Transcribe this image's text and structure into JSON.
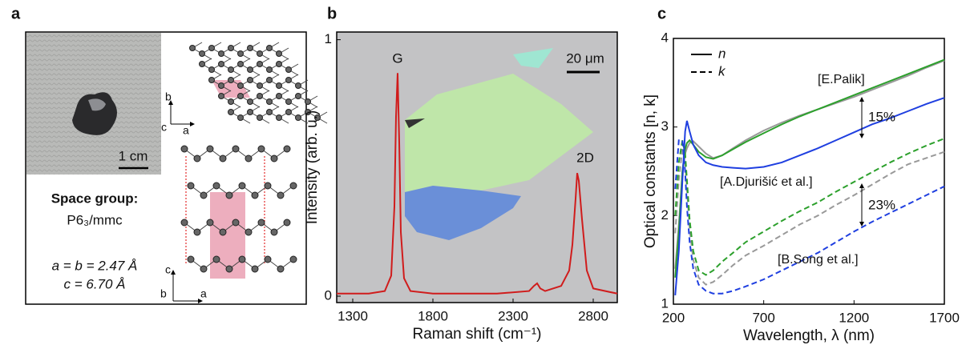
{
  "panel_labels": [
    "a",
    "b",
    "c"
  ],
  "panel_a": {
    "scale_bar": "1 cm",
    "space_group_title": "Space group:",
    "space_group": "P6₃/mmc",
    "lattice_a": "a = b = 2.47 Å",
    "lattice_c": "c = 6.70 Å",
    "top_axes": [
      "b",
      "c",
      "a"
    ],
    "side_axes": [
      "c",
      "b",
      "a"
    ]
  },
  "chart_data": [
    {
      "type": "line",
      "xlabel": "Raman shift (cm⁻¹)",
      "ylabel": "Intensity (arb. u.)",
      "x": [
        1200,
        1400,
        1500,
        1540,
        1560,
        1570,
        1580,
        1590,
        1600,
        1620,
        1660,
        1800,
        2000,
        2200,
        2400,
        2430,
        2450,
        2470,
        2500,
        2600,
        2650,
        2670,
        2690,
        2700,
        2710,
        2730,
        2760,
        2800,
        2950
      ],
      "series": [
        {
          "color": "#d01c1c",
          "values": [
            0.01,
            0.01,
            0.02,
            0.08,
            0.35,
            0.7,
            0.87,
            0.6,
            0.25,
            0.07,
            0.02,
            0.01,
            0.01,
            0.01,
            0.02,
            0.04,
            0.05,
            0.03,
            0.02,
            0.04,
            0.1,
            0.2,
            0.38,
            0.48,
            0.45,
            0.3,
            0.1,
            0.03,
            0.01
          ]
        }
      ],
      "xlim": [
        1200,
        2950
      ],
      "ylim": [
        -0.025,
        1.03
      ],
      "xticks": [
        1300,
        1800,
        2300,
        2800
      ],
      "yticks": [
        0,
        1
      ],
      "annotations": [
        "G",
        "2D",
        "20 μm"
      ]
    },
    {
      "type": "line",
      "xlabel": "Wavelength, λ (nm)",
      "ylabel": "Optical constants [n, k]",
      "x": [
        210,
        230,
        250,
        265,
        275,
        290,
        310,
        340,
        380,
        420,
        470,
        530,
        600,
        700,
        800,
        900,
        1000,
        1100,
        1200,
        1300,
        1400,
        1500,
        1600,
        1700
      ],
      "legend": [
        {
          "label": "n",
          "dash": "solid"
        },
        {
          "label": "k",
          "dash": "dashed"
        }
      ],
      "series_labels": [
        {
          "text": "[E.Palik]",
          "color": "#2ca02c"
        },
        {
          "text": "[A.Djurišić et al.]",
          "color": "#999999"
        },
        {
          "text": "[B.Song et al.]",
          "color": "#1f3fe0"
        }
      ],
      "series": [
        {
          "label": 1,
          "style": 0,
          "color": "#999999",
          "values": [
            1.4,
            1.9,
            2.5,
            2.7,
            2.76,
            2.82,
            2.84,
            2.78,
            2.7,
            2.65,
            2.68,
            2.76,
            2.85,
            2.96,
            3.05,
            3.13,
            3.2,
            3.27,
            3.34,
            3.42,
            3.5,
            3.58,
            3.67,
            3.75
          ]
        },
        {
          "label": 1,
          "style": 1,
          "color": "#999999",
          "values": [
            1.8,
            2.4,
            2.75,
            2.6,
            2.3,
            1.85,
            1.5,
            1.3,
            1.22,
            1.25,
            1.33,
            1.44,
            1.55,
            1.66,
            1.78,
            1.9,
            2.0,
            2.12,
            2.23,
            2.35,
            2.47,
            2.58,
            2.65,
            2.72
          ]
        },
        {
          "label": 0,
          "style": 0,
          "color": "#2ca02c",
          "values": [
            1.3,
            1.8,
            2.5,
            2.75,
            2.82,
            2.85,
            2.8,
            2.72,
            2.66,
            2.64,
            2.68,
            2.75,
            2.83,
            2.93,
            3.03,
            3.12,
            3.2,
            3.28,
            3.36,
            3.44,
            3.52,
            3.6,
            3.68,
            3.76
          ]
        },
        {
          "label": 0,
          "style": 1,
          "color": "#2ca02c",
          "values": [
            2.0,
            2.6,
            2.85,
            2.7,
            2.4,
            1.95,
            1.6,
            1.38,
            1.33,
            1.38,
            1.48,
            1.58,
            1.7,
            1.82,
            1.94,
            2.05,
            2.15,
            2.27,
            2.38,
            2.49,
            2.6,
            2.7,
            2.79,
            2.87
          ]
        },
        {
          "label": 2,
          "style": 0,
          "color": "#1f3fe0",
          "values": [
            1.1,
            1.6,
            2.4,
            2.95,
            3.07,
            2.95,
            2.8,
            2.68,
            2.6,
            2.57,
            2.55,
            2.54,
            2.53,
            2.55,
            2.6,
            2.68,
            2.76,
            2.85,
            2.94,
            3.03,
            3.1,
            3.18,
            3.26,
            3.33
          ]
        },
        {
          "label": 2,
          "style": 1,
          "color": "#1f3fe0",
          "values": [
            2.3,
            2.85,
            2.85,
            2.5,
            2.1,
            1.7,
            1.4,
            1.22,
            1.15,
            1.12,
            1.12,
            1.15,
            1.2,
            1.28,
            1.38,
            1.48,
            1.58,
            1.7,
            1.82,
            1.93,
            2.03,
            2.13,
            2.23,
            2.33
          ]
        }
      ],
      "xlim": [
        200,
        1700
      ],
      "ylim": [
        1,
        4
      ],
      "xticks": [
        200,
        700,
        1200,
        1700
      ],
      "yticks": [
        1,
        2,
        3,
        4
      ],
      "annotations": [
        "15%",
        "23%"
      ]
    }
  ]
}
